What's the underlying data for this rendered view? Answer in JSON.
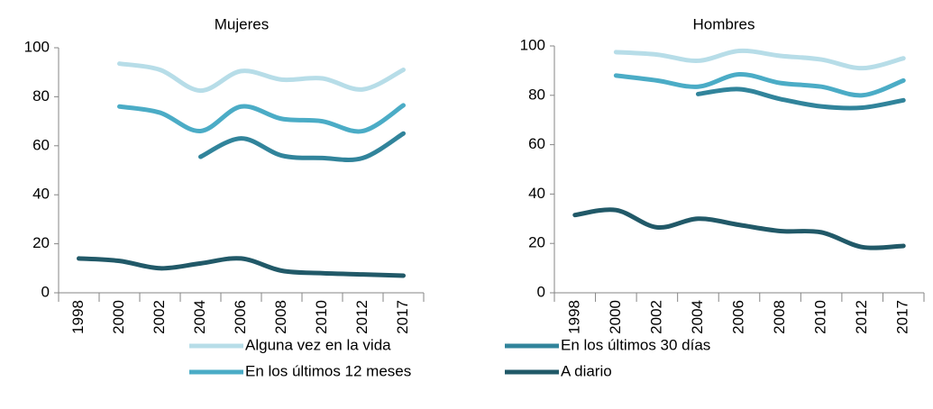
{
  "chart_data": [
    {
      "type": "line",
      "title": "Mujeres",
      "categories": [
        "1998",
        "2000",
        "2002",
        "2004",
        "2006",
        "2008",
        "2010",
        "2012",
        "2017"
      ],
      "ylim": [
        0,
        100
      ],
      "yticks": [
        0,
        20,
        40,
        60,
        80,
        100
      ],
      "grid": false,
      "series": [
        {
          "name": "Alguna vez en la vida",
          "color": "#b7dde8",
          "values": [
            null,
            93.5,
            91,
            82.5,
            90.5,
            87,
            87.5,
            83,
            91
          ]
        },
        {
          "name": "En los últimos 12 meses",
          "color": "#4bacc6",
          "values": [
            null,
            76,
            73.5,
            66,
            76,
            71,
            70,
            66,
            76.5
          ]
        },
        {
          "name": "En los últimos 30 días",
          "color": "#31849b",
          "values": [
            null,
            null,
            null,
            55.5,
            63,
            56,
            55,
            55,
            65
          ]
        },
        {
          "name": "A diario",
          "color": "#215968",
          "values": [
            14,
            13,
            10,
            12,
            14,
            9,
            8,
            7.5,
            7
          ]
        }
      ]
    },
    {
      "type": "line",
      "title": "Hombres",
      "categories": [
        "1998",
        "2000",
        "2002",
        "2004",
        "2006",
        "2008",
        "2010",
        "2012",
        "2017"
      ],
      "ylim": [
        0,
        100
      ],
      "yticks": [
        0,
        20,
        40,
        60,
        80,
        100
      ],
      "grid": false,
      "series": [
        {
          "name": "Alguna vez en la vida",
          "color": "#b7dde8",
          "values": [
            null,
            97.5,
            96.5,
            94,
            98,
            96,
            94.5,
            91,
            95
          ]
        },
        {
          "name": "En los últimos 12 meses",
          "color": "#4bacc6",
          "values": [
            null,
            88,
            86,
            83.5,
            88.5,
            85,
            83.5,
            80,
            86
          ]
        },
        {
          "name": "En los últimos 30 días",
          "color": "#31849b",
          "values": [
            null,
            null,
            null,
            80.5,
            82.5,
            78.5,
            75.5,
            75,
            78
          ]
        },
        {
          "name": "A diario",
          "color": "#215968",
          "values": [
            31.5,
            33.5,
            26.5,
            30,
            27.5,
            25,
            24.5,
            18.5,
            19
          ]
        }
      ]
    }
  ]
}
